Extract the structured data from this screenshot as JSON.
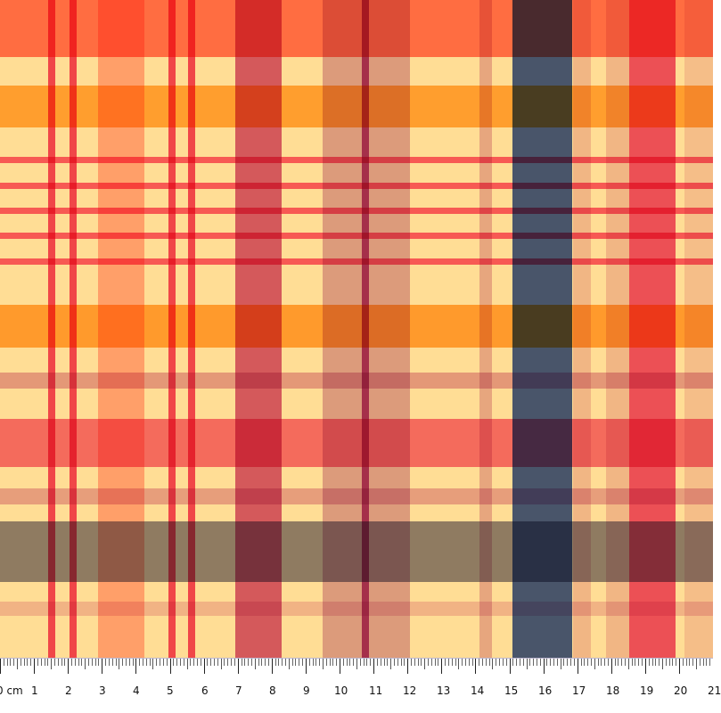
{
  "image": {
    "content": "Plaid fabric swatch with pink, orange, yellow, lavender, and blue stripes",
    "ruler": {
      "unit": "cm",
      "labels": [
        "0 cm",
        "1",
        "2",
        "3",
        "4",
        "5",
        "6",
        "7",
        "8",
        "9",
        "10",
        "11",
        "12",
        "13",
        "14",
        "15",
        "16",
        "17",
        "18",
        "19",
        "20",
        "21"
      ]
    }
  },
  "colors": {
    "base": "#ffdd95",
    "pink": "#ff6680",
    "rose": "#d45f96",
    "lavender": "#d9b2d5",
    "blue": "#4a62b0",
    "orange": "#ffb04d",
    "gray_band": "#8e8a9d",
    "mauve": "#be73a3"
  }
}
